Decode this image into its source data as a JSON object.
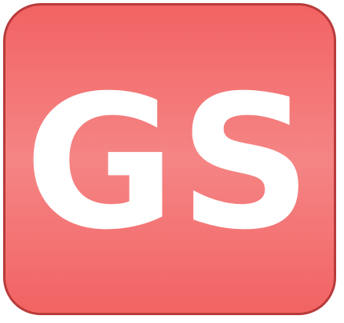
{
  "icon": {
    "text": "GS",
    "background_color": "#f26363",
    "highlight_color": "#f58585",
    "border_color": "#b83a3a",
    "text_color": "#ffffff"
  }
}
